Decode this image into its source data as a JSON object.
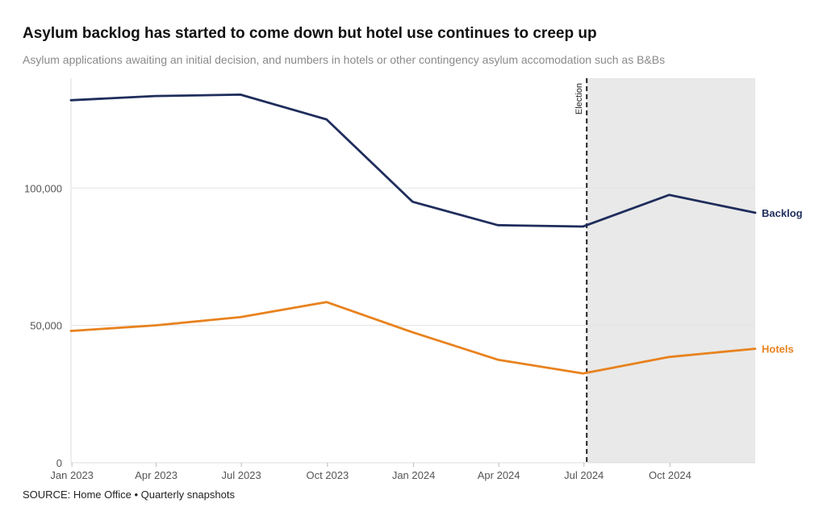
{
  "chart_data": {
    "type": "line",
    "title": "Asylum backlog has started to come down but hotel use continues to creep up",
    "subtitle": "Asylum applications awaiting an initial decision, and numbers in hotels or other contingency asylum accomodation such as B&Bs",
    "source": "SOURCE: Home Office • Quarterly snapshots",
    "xlabel": "",
    "ylabel": "",
    "x": [
      "2022-12-31",
      "2023-03-31",
      "2023-06-30",
      "2023-09-30",
      "2023-12-31",
      "2024-03-31",
      "2024-06-30",
      "2024-09-30",
      "2024-12-31"
    ],
    "x_range": [
      "2022-12-31",
      "2024-12-31"
    ],
    "x_ticks": [
      {
        "date": "2023-01-01",
        "label": "Jan 2023"
      },
      {
        "date": "2023-04-01",
        "label": "Apr 2023"
      },
      {
        "date": "2023-07-01",
        "label": "Jul 2023"
      },
      {
        "date": "2023-10-01",
        "label": "Oct 2023"
      },
      {
        "date": "2024-01-01",
        "label": "Jan 2024"
      },
      {
        "date": "2024-04-01",
        "label": "Apr 2024"
      },
      {
        "date": "2024-07-01",
        "label": "Jul 2024"
      },
      {
        "date": "2024-10-01",
        "label": "Oct 2024"
      }
    ],
    "ylim": [
      0,
      140000
    ],
    "y_ticks": [
      {
        "value": 0,
        "label": "0"
      },
      {
        "value": 50000,
        "label": "50,000"
      },
      {
        "value": 100000,
        "label": "100,000"
      }
    ],
    "grid": true,
    "series": [
      {
        "name": "Backlog",
        "color": "#1f2d5c",
        "values": [
          132000,
          133500,
          134000,
          125000,
          95000,
          86500,
          86000,
          97500,
          91000
        ]
      },
      {
        "name": "Hotels",
        "color": "#e8821e",
        "values": [
          48000,
          50000,
          53000,
          58500,
          47500,
          37500,
          32500,
          38500,
          41500
        ]
      }
    ],
    "annotations": [
      {
        "type": "vertical-line",
        "date": "2024-07-04",
        "label": "Election",
        "style": "dashed"
      },
      {
        "type": "shaded-region",
        "from": "2024-07-04",
        "to": "2024-12-31"
      }
    ],
    "colors": {
      "shade": "#e9e9e9",
      "grid": "#e3e3e3",
      "axis": "#dddddd",
      "election_line": "#222222"
    }
  }
}
